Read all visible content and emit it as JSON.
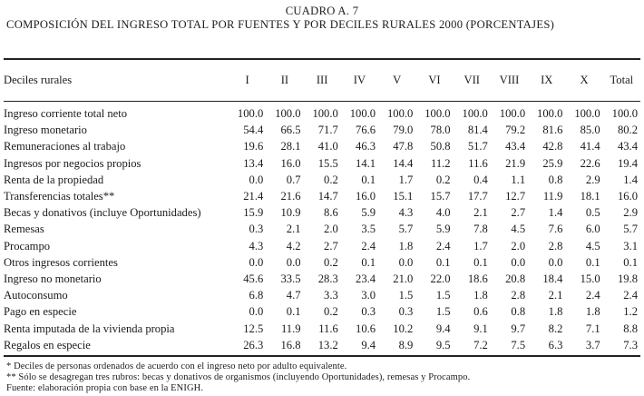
{
  "title": {
    "line1": "CUADRO A. 7",
    "line2": "COMPOSICIÓN DEL INGRESO TOTAL POR FUENTES Y POR DECILES RURALES 2000 (PORCENTAJES)"
  },
  "table": {
    "row_header_label": "Deciles rurales",
    "columns": [
      "I",
      "II",
      "III",
      "IV",
      "V",
      "VI",
      "VII",
      "VIII",
      "IX",
      "X",
      "Total"
    ],
    "rows": [
      {
        "label": "Ingreso corriente total neto",
        "values": [
          "100.0",
          "100.0",
          "100.0",
          "100.0",
          "100.0",
          "100.0",
          "100.0",
          "100.0",
          "100.0",
          "100.0",
          "100.0"
        ]
      },
      {
        "label": "Ingreso monetario",
        "values": [
          "54.4",
          "66.5",
          "71.7",
          "76.6",
          "79.0",
          "78.0",
          "81.4",
          "79.2",
          "81.6",
          "85.0",
          "80.2"
        ]
      },
      {
        "label": "Remuneraciones al trabajo",
        "values": [
          "19.6",
          "28.1",
          "41.0",
          "46.3",
          "47.8",
          "50.8",
          "51.7",
          "43.4",
          "42.8",
          "41.4",
          "43.4"
        ]
      },
      {
        "label": "Ingresos por negocios propios",
        "values": [
          "13.4",
          "16.0",
          "15.5",
          "14.1",
          "14.4",
          "11.2",
          "11.6",
          "21.9",
          "25.9",
          "22.6",
          "19.4"
        ]
      },
      {
        "label": "Renta de la propiedad",
        "values": [
          "0.0",
          "0.7",
          "0.2",
          "0.1",
          "1.7",
          "0.2",
          "0.4",
          "1.1",
          "0.8",
          "2.9",
          "1.4"
        ]
      },
      {
        "label": "Transferencias totales**",
        "values": [
          "21.4",
          "21.6",
          "14.7",
          "16.0",
          "15.1",
          "15.7",
          "17.7",
          "12.7",
          "11.9",
          "18.1",
          "16.0"
        ]
      },
      {
        "label": "Becas y donativos (incluye Oportunidades)",
        "values": [
          "15.9",
          "10.9",
          "8.6",
          "5.9",
          "4.3",
          "4.0",
          "2.1",
          "2.7",
          "1.4",
          "0.5",
          "2.9"
        ]
      },
      {
        "label": "Remesas",
        "values": [
          "0.3",
          "2.1",
          "2.0",
          "3.5",
          "5.7",
          "5.9",
          "7.8",
          "4.5",
          "7.6",
          "6.0",
          "5.7"
        ]
      },
      {
        "label": "Procampo",
        "values": [
          "4.3",
          "4.2",
          "2.7",
          "2.4",
          "1.8",
          "2.4",
          "1.7",
          "2.0",
          "2.8",
          "4.5",
          "3.1"
        ]
      },
      {
        "label": "Otros ingresos corrientes",
        "values": [
          "0.0",
          "0.0",
          "0.2",
          "0.1",
          "0.0",
          "0.1",
          "0.1",
          "0.0",
          "0.0",
          "0.1",
          "0.1"
        ]
      },
      {
        "label": "Ingreso no monetario",
        "values": [
          "45.6",
          "33.5",
          "28.3",
          "23.4",
          "21.0",
          "22.0",
          "18.6",
          "20.8",
          "18.4",
          "15.0",
          "19.8"
        ]
      },
      {
        "label": "Autoconsumo",
        "values": [
          "6.8",
          "4.7",
          "3.3",
          "3.0",
          "1.5",
          "1.5",
          "1.8",
          "2.8",
          "2.1",
          "2.4",
          "2.4"
        ]
      },
      {
        "label": "Pago en especie",
        "values": [
          "0.0",
          "0.1",
          "0.2",
          "0.3",
          "0.3",
          "1.5",
          "0.6",
          "0.8",
          "1.8",
          "1.8",
          "1.2"
        ]
      },
      {
        "label": "Renta imputada de la vivienda propia",
        "values": [
          "12.5",
          "11.9",
          "11.6",
          "10.6",
          "10.2",
          "9.4",
          "9.1",
          "9.7",
          "8.2",
          "7.1",
          "8.8"
        ]
      },
      {
        "label": "Regalos en especie",
        "values": [
          "26.3",
          "16.8",
          "13.2",
          "9.4",
          "8.9",
          "9.5",
          "7.2",
          "7.5",
          "6.3",
          "3.7",
          "7.3"
        ]
      }
    ]
  },
  "footnotes": [
    "* Deciles de personas ordenados de acuerdo con el ingreso neto por adulto equivalente.",
    "** Sólo se desagregan tres rubros: becas y donativos de organismos (incluyendo Oportunidades), remesas y Procampo.",
    "Fuente: elaboración propia con base en la ENIGH."
  ],
  "colors": {
    "ink": "#1b1b1b",
    "rule": "#222222",
    "background": "#ffffff"
  }
}
